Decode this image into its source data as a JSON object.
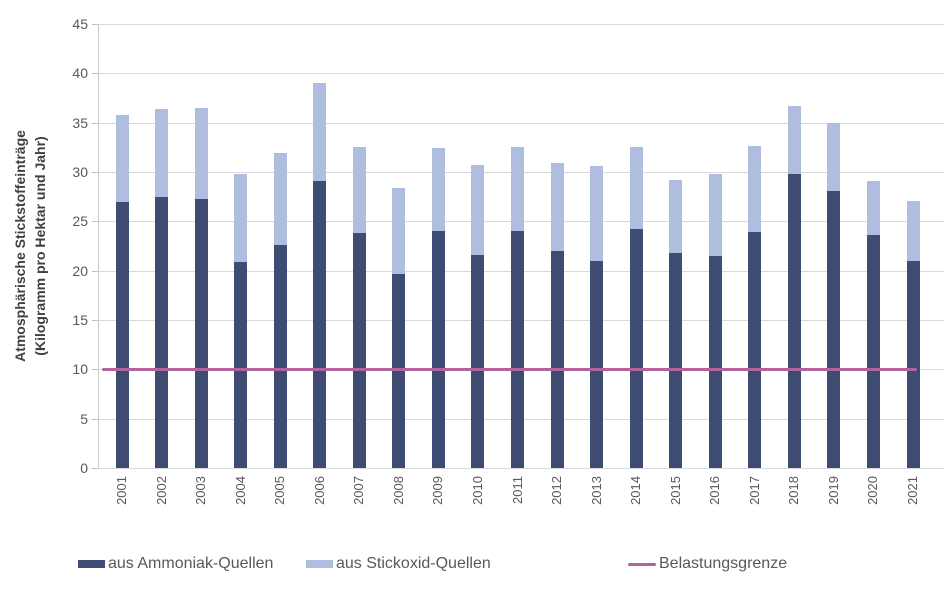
{
  "chart_data": {
    "type": "bar",
    "stacked": true,
    "title": "",
    "ylabel_line1": "Atmosphärische Stickstoffeinträge",
    "ylabel_line2": "(Kilogramm pro Hektar und Jahr)",
    "categories": [
      "2001",
      "2002",
      "2003",
      "2004",
      "2005",
      "2006",
      "2007",
      "2008",
      "2009",
      "2010",
      "2011",
      "2012",
      "2013",
      "2014",
      "2015",
      "2016",
      "2017",
      "2018",
      "2019",
      "2020",
      "2021"
    ],
    "series": [
      {
        "name": "aus Ammoniak-Quellen",
        "color": "#3E4C73",
        "values": [
          27.0,
          27.5,
          27.3,
          20.9,
          22.6,
          29.1,
          23.8,
          19.7,
          24.0,
          21.6,
          24.0,
          22.0,
          21.0,
          24.2,
          21.8,
          21.5,
          23.9,
          29.8,
          28.1,
          23.6,
          21.0
        ]
      },
      {
        "name": "aus Stickoxid-Quellen",
        "color": "#AFBDDF",
        "values": [
          8.8,
          8.9,
          9.2,
          8.9,
          9.3,
          9.9,
          8.7,
          8.7,
          8.4,
          9.1,
          8.5,
          8.9,
          9.6,
          8.3,
          7.4,
          8.3,
          8.7,
          6.9,
          6.9,
          5.5,
          6.1
        ]
      },
      {
        "name": "Belastungsgrenze",
        "color": "#B2639E",
        "type": "line",
        "value": 10
      }
    ],
    "stack_totals": [
      35.8,
      36.4,
      36.5,
      29.8,
      31.9,
      39.0,
      32.5,
      28.4,
      32.4,
      30.7,
      32.5,
      30.9,
      30.6,
      32.5,
      29.2,
      29.8,
      32.6,
      36.7,
      35.0,
      29.1,
      27.1
    ],
    "ylim": [
      0,
      45
    ],
    "yticks": [
      0,
      5,
      10,
      15,
      20,
      25,
      30,
      35,
      40,
      45
    ],
    "grid": true,
    "legend_position": "bottom",
    "gridline_color": "#d9d9d9",
    "tick_text_color": "#595959",
    "axis_title_color": "#404040",
    "background_color": "#ffffff"
  }
}
